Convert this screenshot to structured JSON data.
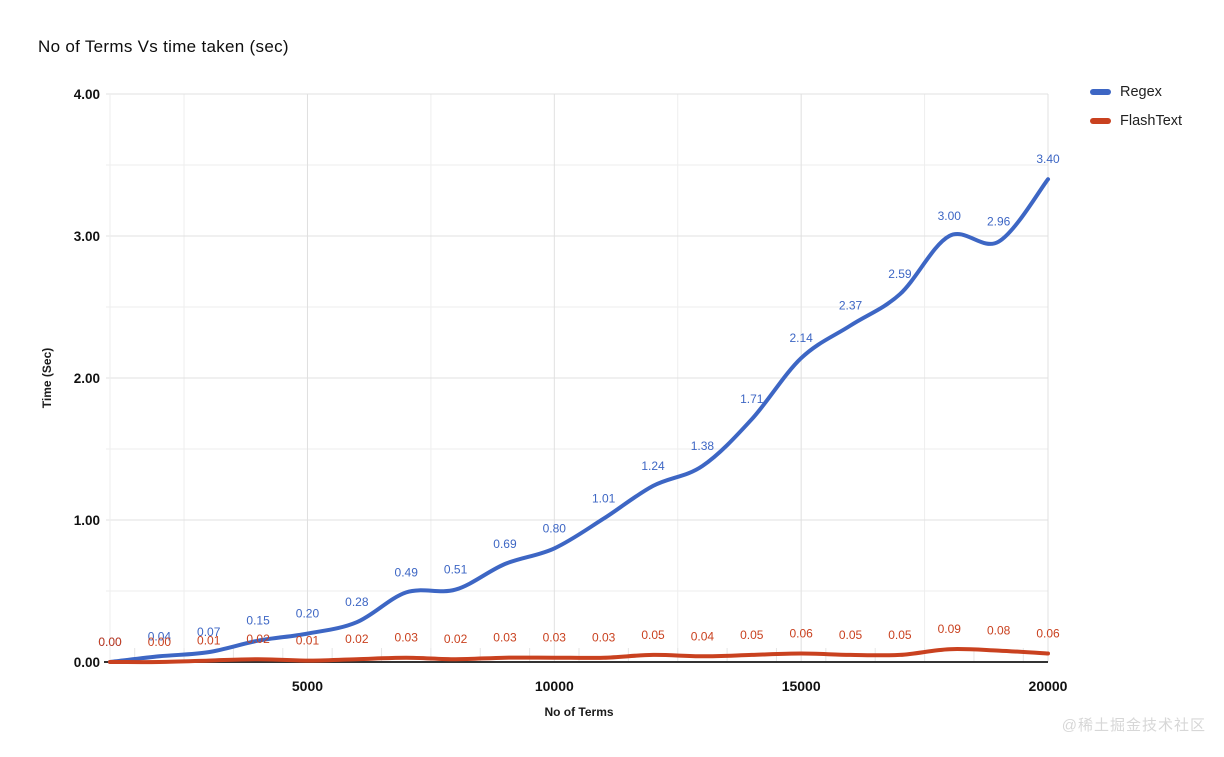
{
  "page": {
    "watermark": "@稀土掘金技术社区"
  },
  "chart_data": {
    "type": "line",
    "title": "No of Terms Vs time taken (sec)",
    "xlabel": "No of Terms",
    "ylabel": "Time (Sec)",
    "smooth": true,
    "point_labels_shown": true,
    "legend_position": "right-top",
    "xlim": [
      1000,
      20000
    ],
    "ylim": [
      0,
      4
    ],
    "x_tick_values": [
      5000,
      10000,
      15000,
      20000
    ],
    "x_tick_labels": [
      "5000",
      "10000",
      "15000",
      "20000"
    ],
    "y_tick_values": [
      0,
      1,
      2,
      3,
      4
    ],
    "y_tick_labels": [
      "0.00",
      "1.00",
      "2.00",
      "3.00",
      "4.00"
    ],
    "x": [
      1000,
      2000,
      3000,
      4000,
      5000,
      6000,
      7000,
      8000,
      9000,
      10000,
      11000,
      12000,
      13000,
      14000,
      15000,
      16000,
      17000,
      18000,
      19000,
      20000
    ],
    "series": [
      {
        "name": "Regex",
        "color": "#3d66c4",
        "values": [
          0.0,
          0.04,
          0.07,
          0.15,
          0.2,
          0.28,
          0.49,
          0.51,
          0.69,
          0.8,
          1.01,
          1.24,
          1.38,
          1.71,
          2.14,
          2.37,
          2.59,
          3.0,
          2.96,
          3.4
        ]
      },
      {
        "name": "FlashText",
        "color": "#c9411f",
        "values": [
          0.0,
          0.0,
          0.01,
          0.02,
          0.01,
          0.02,
          0.03,
          0.02,
          0.03,
          0.03,
          0.03,
          0.05,
          0.04,
          0.05,
          0.06,
          0.05,
          0.05,
          0.09,
          0.08,
          0.06
        ]
      }
    ],
    "grid": {
      "major_color": "#e0e0e0",
      "minor_color": "#eeeeee",
      "axis_color": "#333333"
    }
  }
}
